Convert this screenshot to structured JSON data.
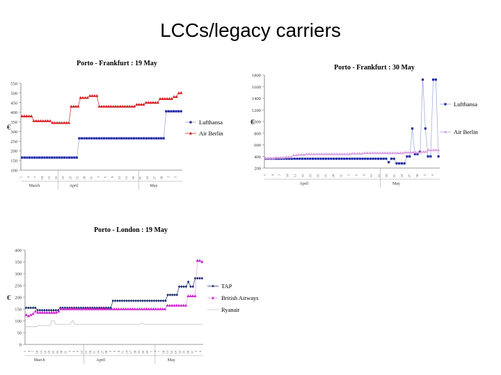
{
  "slide": {
    "title": "LCCs/legacy carriers"
  },
  "colors": {
    "lufthansa": "#1f2aa8",
    "airberlin": "#d42020",
    "tap": "#1a2a6c",
    "ba": "#d020d0",
    "ryanair": "#c8c8c8",
    "line": "#9aa3d8",
    "pinkline": "#e0a0e0"
  },
  "chart_data": [
    {
      "type": "line",
      "title": "Porto - Frankfurt : 19 May",
      "ylabel": "€",
      "ylim": [
        100,
        550
      ],
      "yticks": [
        100,
        150,
        200,
        250,
        300,
        350,
        400,
        450,
        500,
        550
      ],
      "months": [
        "March",
        "April",
        "May"
      ],
      "series": [
        {
          "name": "Lufthansa",
          "marker": "square",
          "values": [
            165,
            165,
            165,
            165,
            165,
            165,
            165,
            165,
            165,
            165,
            165,
            165,
            165,
            165,
            165,
            165,
            165,
            165,
            165,
            165,
            165,
            165,
            165,
            265,
            265,
            265,
            265,
            265,
            265,
            265,
            265,
            265,
            265,
            265,
            265,
            265,
            265,
            265,
            265,
            265,
            265,
            265,
            265,
            265,
            265,
            265,
            265,
            265,
            265,
            265,
            265,
            265,
            265,
            265,
            265,
            265,
            265,
            265,
            405,
            405,
            405,
            405,
            405,
            405,
            405
          ]
        },
        {
          "name": "Air Berlin",
          "marker": "triangle",
          "values": [
            380,
            380,
            380,
            380,
            380,
            355,
            355,
            355,
            355,
            355,
            355,
            355,
            355,
            345,
            345,
            345,
            345,
            345,
            345,
            345,
            345,
            430,
            430,
            430,
            430,
            475,
            475,
            475,
            475,
            485,
            485,
            485,
            485,
            430,
            430,
            430,
            430,
            430,
            430,
            430,
            430,
            430,
            430,
            430,
            430,
            430,
            430,
            430,
            430,
            440,
            440,
            440,
            440,
            450,
            450,
            450,
            450,
            450,
            450,
            470,
            470,
            470,
            470,
            470,
            470,
            480,
            480,
            500,
            500
          ]
        }
      ]
    },
    {
      "type": "line",
      "title": "Porto - Frankfurt : 30 May",
      "ylabel": "€",
      "ylim": [
        200,
        1800
      ],
      "yticks": [
        200,
        400,
        600,
        800,
        1000,
        1200,
        1400,
        1600,
        1800
      ],
      "months": [
        "April",
        "May"
      ],
      "series": [
        {
          "name": "Lufthansa",
          "marker": "square",
          "values": [
            360,
            360,
            360,
            360,
            360,
            360,
            360,
            360,
            360,
            360,
            360,
            360,
            360,
            360,
            360,
            360,
            360,
            360,
            360,
            360,
            360,
            360,
            360,
            360,
            360,
            360,
            360,
            360,
            360,
            360,
            360,
            360,
            360,
            360,
            360,
            360,
            360,
            360,
            360,
            360,
            360,
            360,
            360,
            360,
            360,
            360,
            360,
            300,
            360,
            360,
            280,
            280,
            280,
            280,
            400,
            400,
            880,
            440,
            440,
            480,
            1720,
            880,
            400,
            400,
            1720,
            1720,
            400
          ]
        },
        {
          "name": "Air Berlin",
          "marker": "triangle",
          "values": [
            370,
            370,
            370,
            370,
            380,
            380,
            380,
            380,
            390,
            390,
            390,
            420,
            420,
            430,
            430,
            430,
            440,
            440,
            440,
            440,
            440,
            440,
            440,
            440,
            440,
            440,
            440,
            440,
            440,
            440,
            440,
            440,
            440,
            440,
            450,
            450,
            450,
            450,
            450,
            460,
            460,
            460,
            460,
            460,
            460,
            460,
            460,
            460,
            460,
            460,
            460,
            460,
            460,
            460,
            460,
            470,
            470,
            470,
            470,
            470,
            470,
            470,
            480,
            480,
            510,
            510,
            510,
            510,
            510
          ]
        }
      ]
    },
    {
      "type": "line",
      "title": "Porto - London : 19 May",
      "ylabel": "€",
      "ylim": [
        0,
        400
      ],
      "yticks": [
        0,
        50,
        100,
        150,
        200,
        250,
        300,
        350,
        400
      ],
      "months": [
        "March",
        "April",
        "May"
      ],
      "series": [
        {
          "name": "TAP",
          "marker": "diamond",
          "values": [
            155,
            155,
            155,
            155,
            155,
            145,
            145,
            145,
            145,
            145,
            145,
            145,
            145,
            145,
            145,
            155,
            155,
            155,
            155,
            155,
            155,
            155,
            155,
            155,
            155,
            155,
            155,
            155,
            155,
            155,
            155,
            155,
            155,
            155,
            155,
            155,
            155,
            155,
            185,
            185,
            185,
            185,
            185,
            185,
            185,
            185,
            185,
            185,
            185,
            185,
            185,
            185,
            185,
            185,
            185,
            185,
            185,
            185,
            185,
            185,
            185,
            185,
            210,
            210,
            210,
            210,
            210,
            245,
            245,
            245,
            245,
            265,
            245,
            245,
            280,
            280,
            280,
            280
          ]
        },
        {
          "name": "British Airways",
          "marker": "triangle",
          "values": [
            125,
            120,
            125,
            130,
            140,
            135,
            135,
            135,
            135,
            135,
            135,
            135,
            135,
            135,
            140,
            150,
            150,
            150,
            150,
            150,
            150,
            150,
            150,
            150,
            150,
            150,
            150,
            150,
            150,
            150,
            150,
            150,
            150,
            150,
            150,
            150,
            150,
            150,
            150,
            150,
            150,
            150,
            150,
            150,
            150,
            150,
            150,
            150,
            150,
            150,
            150,
            150,
            150,
            150,
            150,
            150,
            150,
            150,
            150,
            150,
            150,
            165,
            165,
            165,
            165,
            165,
            165,
            165,
            165,
            165,
            205,
            205,
            205,
            205,
            355,
            355,
            350
          ]
        },
        {
          "name": "Ryanair",
          "marker": "line",
          "values": [
            75,
            75,
            75,
            75,
            75,
            75,
            75,
            75,
            75,
            80,
            80,
            80,
            80,
            80,
            80,
            80,
            80,
            80,
            80,
            100,
            100,
            100,
            85,
            85,
            85,
            85,
            85,
            85,
            85,
            85,
            85,
            85,
            85,
            85,
            100,
            100,
            85,
            85,
            85,
            85,
            85,
            85,
            85,
            85,
            85,
            85,
            85,
            85,
            85,
            85,
            85,
            85,
            85,
            85,
            85,
            85,
            85,
            85,
            85,
            85,
            85,
            85,
            85,
            85,
            85,
            85,
            85,
            85,
            85,
            85,
            85,
            85,
            85,
            85,
            85,
            85,
            85,
            85,
            85,
            85,
            85,
            85,
            85,
            85,
            85,
            90,
            90,
            85,
            85,
            85,
            85,
            85,
            85,
            85,
            85,
            85,
            85,
            85,
            85,
            85,
            85,
            85,
            85,
            85,
            85,
            85,
            85,
            85,
            85,
            85,
            85,
            85,
            85,
            85,
            85,
            85,
            85,
            85,
            85,
            85,
            85,
            85,
            85,
            85,
            85,
            85,
            85,
            85,
            85,
            85,
            85
          ]
        }
      ]
    }
  ]
}
